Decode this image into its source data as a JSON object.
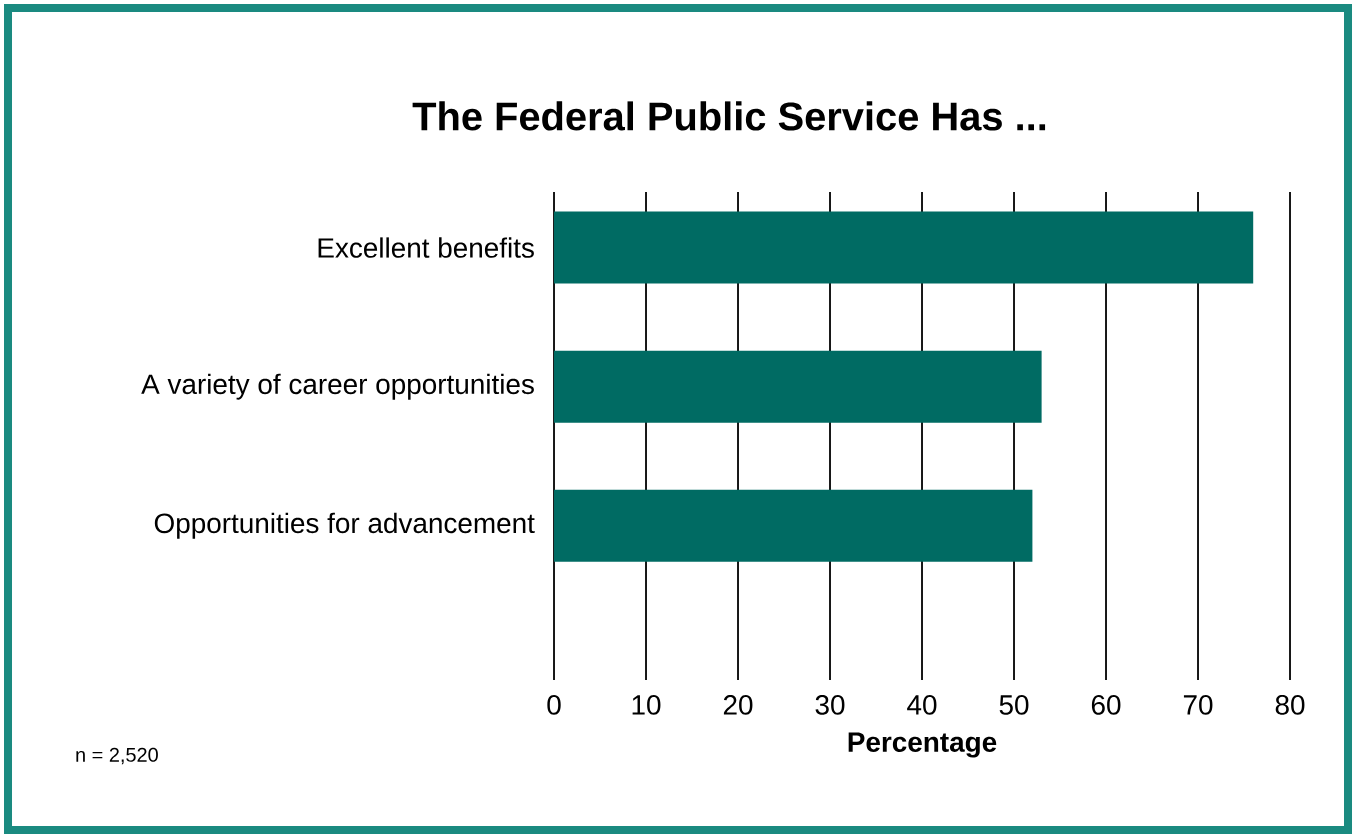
{
  "chart_data": {
    "type": "bar",
    "orientation": "horizontal",
    "title": "The Federal Public Service Has ...",
    "xlabel": "Percentage",
    "categories": [
      "Excellent benefits",
      "A variety of career opportunities",
      "Opportunities for advancement"
    ],
    "values": [
      76,
      53,
      52
    ],
    "color": "#006b63",
    "xlim": [
      0,
      80
    ],
    "xticks": [
      0,
      10,
      20,
      30,
      40,
      50,
      60,
      70,
      80
    ],
    "grid": "x",
    "annotations": [
      "n = 2,520"
    ]
  }
}
